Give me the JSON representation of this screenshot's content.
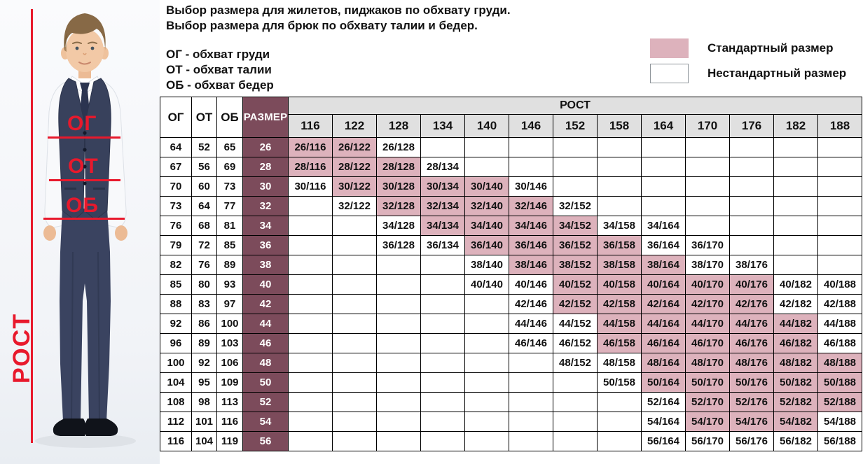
{
  "header": {
    "line1": "Выбор размера для жилетов, пиджаков по обхвату груди.",
    "line2": "Выбор размера для брюк по обхвату талии и бедер.",
    "abbr": [
      "ОГ - обхват груди",
      "ОТ - обхват талии",
      "ОБ - обхват бедер"
    ]
  },
  "legend": {
    "standard_label": "Стандартный размер",
    "nonstandard_label": "Нестандартный размер",
    "standard_color": "#ddb2bc",
    "nonstandard_color": "#ffffff"
  },
  "figure": {
    "chest_label": "ОГ",
    "waist_label": "ОТ",
    "hips_label": "ОБ",
    "height_label": "РОСТ",
    "annotation_color": "#e8192c"
  },
  "colors": {
    "size_column": "#7c4b5b",
    "standard_cell": "#ddb2bc",
    "header_gray": "#e0e0e0"
  },
  "chart_data": {
    "type": "table",
    "corner_headers": {
      "og": "ОГ",
      "ot": "ОТ",
      "ob": "ОБ",
      "size": "РАЗМЕР"
    },
    "rost_header": "РОСТ",
    "height_columns": [
      116,
      122,
      128,
      134,
      140,
      146,
      152,
      158,
      164,
      170,
      176,
      182,
      188
    ],
    "rows": [
      {
        "og": 64,
        "ot": 52,
        "ob": 65,
        "size": 26,
        "cells": [
          {
            "h": 116,
            "label": "26/116",
            "standard": true
          },
          {
            "h": 122,
            "label": "26/122",
            "standard": true
          },
          {
            "h": 128,
            "label": "26/128",
            "standard": false
          }
        ]
      },
      {
        "og": 67,
        "ot": 56,
        "ob": 69,
        "size": 28,
        "cells": [
          {
            "h": 116,
            "label": "28/116",
            "standard": true
          },
          {
            "h": 122,
            "label": "28/122",
            "standard": true
          },
          {
            "h": 128,
            "label": "28/128",
            "standard": true
          },
          {
            "h": 134,
            "label": "28/134",
            "standard": false
          }
        ]
      },
      {
        "og": 70,
        "ot": 60,
        "ob": 73,
        "size": 30,
        "cells": [
          {
            "h": 116,
            "label": "30/116",
            "standard": false
          },
          {
            "h": 122,
            "label": "30/122",
            "standard": true
          },
          {
            "h": 128,
            "label": "30/128",
            "standard": true
          },
          {
            "h": 134,
            "label": "30/134",
            "standard": true
          },
          {
            "h": 140,
            "label": "30/140",
            "standard": true
          },
          {
            "h": 146,
            "label": "30/146",
            "standard": false
          }
        ]
      },
      {
        "og": 73,
        "ot": 64,
        "ob": 77,
        "size": 32,
        "cells": [
          {
            "h": 122,
            "label": "32/122",
            "standard": false
          },
          {
            "h": 128,
            "label": "32/128",
            "standard": true
          },
          {
            "h": 134,
            "label": "32/134",
            "standard": true
          },
          {
            "h": 140,
            "label": "32/140",
            "standard": true
          },
          {
            "h": 146,
            "label": "32/146",
            "standard": true
          },
          {
            "h": 152,
            "label": "32/152",
            "standard": false
          }
        ]
      },
      {
        "og": 76,
        "ot": 68,
        "ob": 81,
        "size": 34,
        "cells": [
          {
            "h": 128,
            "label": "34/128",
            "standard": false
          },
          {
            "h": 134,
            "label": "34/134",
            "standard": true
          },
          {
            "h": 140,
            "label": "34/140",
            "standard": true
          },
          {
            "h": 146,
            "label": "34/146",
            "standard": true
          },
          {
            "h": 152,
            "label": "34/152",
            "standard": true
          },
          {
            "h": 158,
            "label": "34/158",
            "standard": false
          },
          {
            "h": 164,
            "label": "34/164",
            "standard": false
          }
        ]
      },
      {
        "og": 79,
        "ot": 72,
        "ob": 85,
        "size": 36,
        "cells": [
          {
            "h": 128,
            "label": "36/128",
            "standard": false
          },
          {
            "h": 134,
            "label": "36/134",
            "standard": false
          },
          {
            "h": 140,
            "label": "36/140",
            "standard": true
          },
          {
            "h": 146,
            "label": "36/146",
            "standard": true
          },
          {
            "h": 152,
            "label": "36/152",
            "standard": true
          },
          {
            "h": 158,
            "label": "36/158",
            "standard": true
          },
          {
            "h": 164,
            "label": "36/164",
            "standard": false
          },
          {
            "h": 170,
            "label": "36/170",
            "standard": false
          }
        ]
      },
      {
        "og": 82,
        "ot": 76,
        "ob": 89,
        "size": 38,
        "cells": [
          {
            "h": 140,
            "label": "38/140",
            "standard": false
          },
          {
            "h": 146,
            "label": "38/146",
            "standard": true
          },
          {
            "h": 152,
            "label": "38/152",
            "standard": true
          },
          {
            "h": 158,
            "label": "38/158",
            "standard": true
          },
          {
            "h": 164,
            "label": "38/164",
            "standard": true
          },
          {
            "h": 170,
            "label": "38/170",
            "standard": false
          },
          {
            "h": 176,
            "label": "38/176",
            "standard": false
          }
        ]
      },
      {
        "og": 85,
        "ot": 80,
        "ob": 93,
        "size": 40,
        "cells": [
          {
            "h": 140,
            "label": "40/140",
            "standard": false
          },
          {
            "h": 146,
            "label": "40/146",
            "standard": false
          },
          {
            "h": 152,
            "label": "40/152",
            "standard": true
          },
          {
            "h": 158,
            "label": "40/158",
            "standard": true
          },
          {
            "h": 164,
            "label": "40/164",
            "standard": true
          },
          {
            "h": 170,
            "label": "40/170",
            "standard": true
          },
          {
            "h": 176,
            "label": "40/176",
            "standard": true
          },
          {
            "h": 182,
            "label": "40/182",
            "standard": false
          },
          {
            "h": 188,
            "label": "40/188",
            "standard": false
          }
        ]
      },
      {
        "og": 88,
        "ot": 83,
        "ob": 97,
        "size": 42,
        "cells": [
          {
            "h": 146,
            "label": "42/146",
            "standard": false
          },
          {
            "h": 152,
            "label": "42/152",
            "standard": true
          },
          {
            "h": 158,
            "label": "42/158",
            "standard": true
          },
          {
            "h": 164,
            "label": "42/164",
            "standard": true
          },
          {
            "h": 170,
            "label": "42/170",
            "standard": true
          },
          {
            "h": 176,
            "label": "42/176",
            "standard": true
          },
          {
            "h": 182,
            "label": "42/182",
            "standard": false
          },
          {
            "h": 188,
            "label": "42/188",
            "standard": false
          }
        ]
      },
      {
        "og": 92,
        "ot": 86,
        "ob": 100,
        "size": 44,
        "cells": [
          {
            "h": 146,
            "label": "44/146",
            "standard": false
          },
          {
            "h": 152,
            "label": "44/152",
            "standard": false
          },
          {
            "h": 158,
            "label": "44/158",
            "standard": true
          },
          {
            "h": 164,
            "label": "44/164",
            "standard": true
          },
          {
            "h": 170,
            "label": "44/170",
            "standard": true
          },
          {
            "h": 176,
            "label": "44/176",
            "standard": true
          },
          {
            "h": 182,
            "label": "44/182",
            "standard": true
          },
          {
            "h": 188,
            "label": "44/188",
            "standard": false
          }
        ]
      },
      {
        "og": 96,
        "ot": 89,
        "ob": 103,
        "size": 46,
        "cells": [
          {
            "h": 146,
            "label": "46/146",
            "standard": false
          },
          {
            "h": 152,
            "label": "46/152",
            "standard": false
          },
          {
            "h": 158,
            "label": "46/158",
            "standard": true
          },
          {
            "h": 164,
            "label": "46/164",
            "standard": true
          },
          {
            "h": 170,
            "label": "46/170",
            "standard": true
          },
          {
            "h": 176,
            "label": "46/176",
            "standard": true
          },
          {
            "h": 182,
            "label": "46/182",
            "standard": true
          },
          {
            "h": 188,
            "label": "46/188",
            "standard": false
          }
        ]
      },
      {
        "og": 100,
        "ot": 92,
        "ob": 106,
        "size": 48,
        "cells": [
          {
            "h": 152,
            "label": "48/152",
            "standard": false
          },
          {
            "h": 158,
            "label": "48/158",
            "standard": false
          },
          {
            "h": 164,
            "label": "48/164",
            "standard": true
          },
          {
            "h": 170,
            "label": "48/170",
            "standard": true
          },
          {
            "h": 176,
            "label": "48/176",
            "standard": true
          },
          {
            "h": 182,
            "label": "48/182",
            "standard": true
          },
          {
            "h": 188,
            "label": "48/188",
            "standard": true
          }
        ]
      },
      {
        "og": 104,
        "ot": 95,
        "ob": 109,
        "size": 50,
        "cells": [
          {
            "h": 158,
            "label": "50/158",
            "standard": false
          },
          {
            "h": 164,
            "label": "50/164",
            "standard": true
          },
          {
            "h": 170,
            "label": "50/170",
            "standard": true
          },
          {
            "h": 176,
            "label": "50/176",
            "standard": true
          },
          {
            "h": 182,
            "label": "50/182",
            "standard": true
          },
          {
            "h": 188,
            "label": "50/188",
            "standard": true
          }
        ]
      },
      {
        "og": 108,
        "ot": 98,
        "ob": 113,
        "size": 52,
        "cells": [
          {
            "h": 164,
            "label": "52/164",
            "standard": false
          },
          {
            "h": 170,
            "label": "52/170",
            "standard": true
          },
          {
            "h": 176,
            "label": "52/176",
            "standard": true
          },
          {
            "h": 182,
            "label": "52/182",
            "standard": true
          },
          {
            "h": 188,
            "label": "52/188",
            "standard": true
          }
        ]
      },
      {
        "og": 112,
        "ot": 101,
        "ob": 116,
        "size": 54,
        "cells": [
          {
            "h": 164,
            "label": "54/164",
            "standard": false
          },
          {
            "h": 170,
            "label": "54/170",
            "standard": true
          },
          {
            "h": 176,
            "label": "54/176",
            "standard": true
          },
          {
            "h": 182,
            "label": "54/182",
            "standard": true
          },
          {
            "h": 188,
            "label": "54/188",
            "standard": false
          }
        ]
      },
      {
        "og": 116,
        "ot": 104,
        "ob": 119,
        "size": 56,
        "cells": [
          {
            "h": 164,
            "label": "56/164",
            "standard": false
          },
          {
            "h": 170,
            "label": "56/170",
            "standard": false
          },
          {
            "h": 176,
            "label": "56/176",
            "standard": false
          },
          {
            "h": 182,
            "label": "56/182",
            "standard": false
          },
          {
            "h": 188,
            "label": "56/188",
            "standard": false
          }
        ]
      }
    ]
  }
}
